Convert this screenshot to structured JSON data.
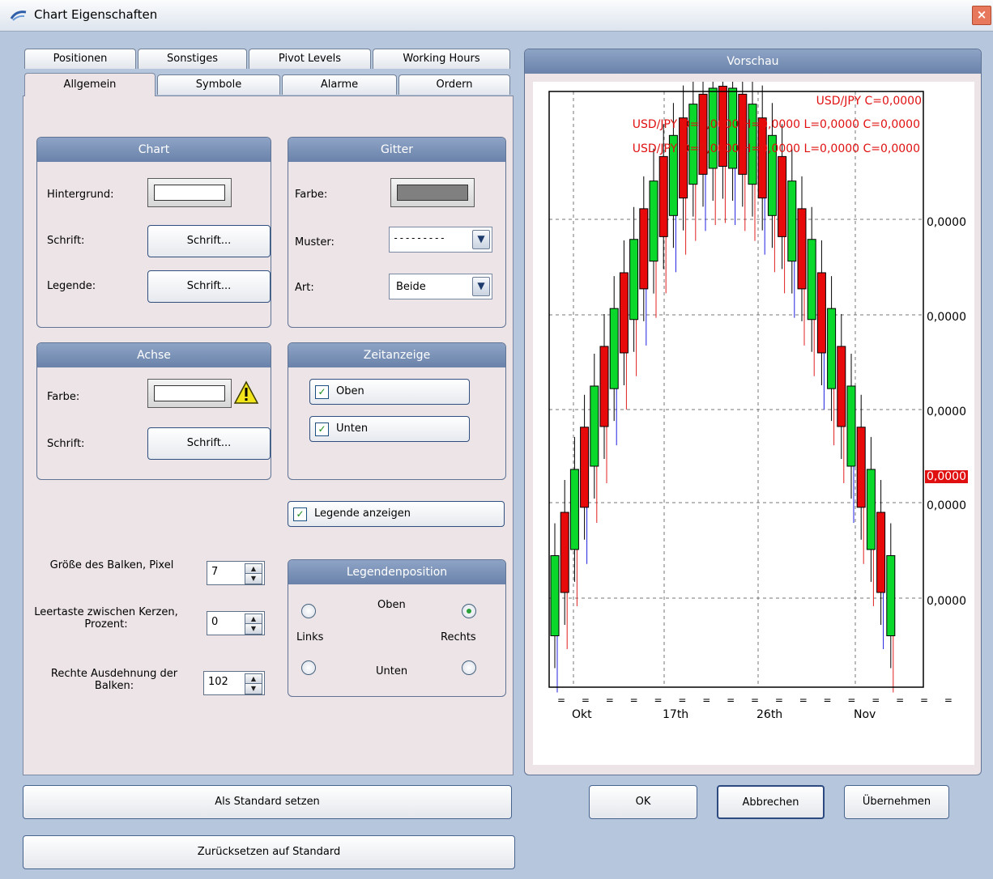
{
  "window": {
    "title": "Chart Eigenschaften",
    "close_symbol": "×"
  },
  "tabs_row1": [
    "Positionen",
    "Sonstiges",
    "Pivot Levels",
    "Working Hours"
  ],
  "tabs_row2": [
    "Allgemein",
    "Symbole",
    "Alarme",
    "Ordern"
  ],
  "active_tab": "Allgemein",
  "chart_group": {
    "title": "Chart",
    "background_label": "Hintergrund:",
    "background_color": "#ffffff",
    "font_label": "Schrift:",
    "font_button": "Schrift...",
    "legend_label": "Legende:",
    "legend_button": "Schrift..."
  },
  "grid_group": {
    "title": "Gitter",
    "color_label": "Farbe:",
    "color": "#808080",
    "pattern_label": "Muster:",
    "pattern_value": "---------",
    "type_label": "Art:",
    "type_value": "Beide"
  },
  "axis_group": {
    "title": "Achse",
    "color_label": "Farbe:",
    "color": "#ffffff",
    "warning_icon": "warning-icon",
    "font_label": "Schrift:",
    "font_button": "Schrift..."
  },
  "time_group": {
    "title": "Zeitanzeige",
    "top_label": "Oben",
    "top_checked": true,
    "bottom_label": "Unten",
    "bottom_checked": true
  },
  "show_legend": {
    "label": "Legende anzeigen",
    "checked": true
  },
  "bar_size": {
    "label": "Größe des Balken, Pixel",
    "value": "7"
  },
  "candle_gap": {
    "label_line1": "Leertaste zwischen Kerzen,",
    "label_line2": "Prozent:",
    "value": "0"
  },
  "right_extend": {
    "label_line1": "Rechte Ausdehnung der",
    "label_line2": "Balken:",
    "value": "102"
  },
  "legend_position": {
    "title": "Legendenposition",
    "top": "Oben",
    "left": "Links",
    "right": "Rechts",
    "bottom": "Unten",
    "selected": "Oben-Rechts"
  },
  "preview": {
    "title": "Vorschau",
    "legend_lines": [
      "USD/JPY C=0,0000",
      "USD/JPY O=0,0000 H=0,0000 L=0,0000 C=0,0000",
      "USD/JPY O=0,0000 H=0,0000 L=0,0000 C=0,0000"
    ],
    "price_labels": [
      "0,0000",
      "0,0000",
      "0,0000",
      "0,0000",
      "0,0000"
    ],
    "current_price": "0,0000",
    "time_labels": [
      "Okt",
      "17th",
      "26th",
      "Nov"
    ]
  },
  "buttons": {
    "set_default": "Als Standard setzen",
    "reset_default": "Zurücksetzen auf Standard",
    "ok": "OK",
    "cancel": "Abbrechen",
    "apply": "Übernehmen"
  }
}
